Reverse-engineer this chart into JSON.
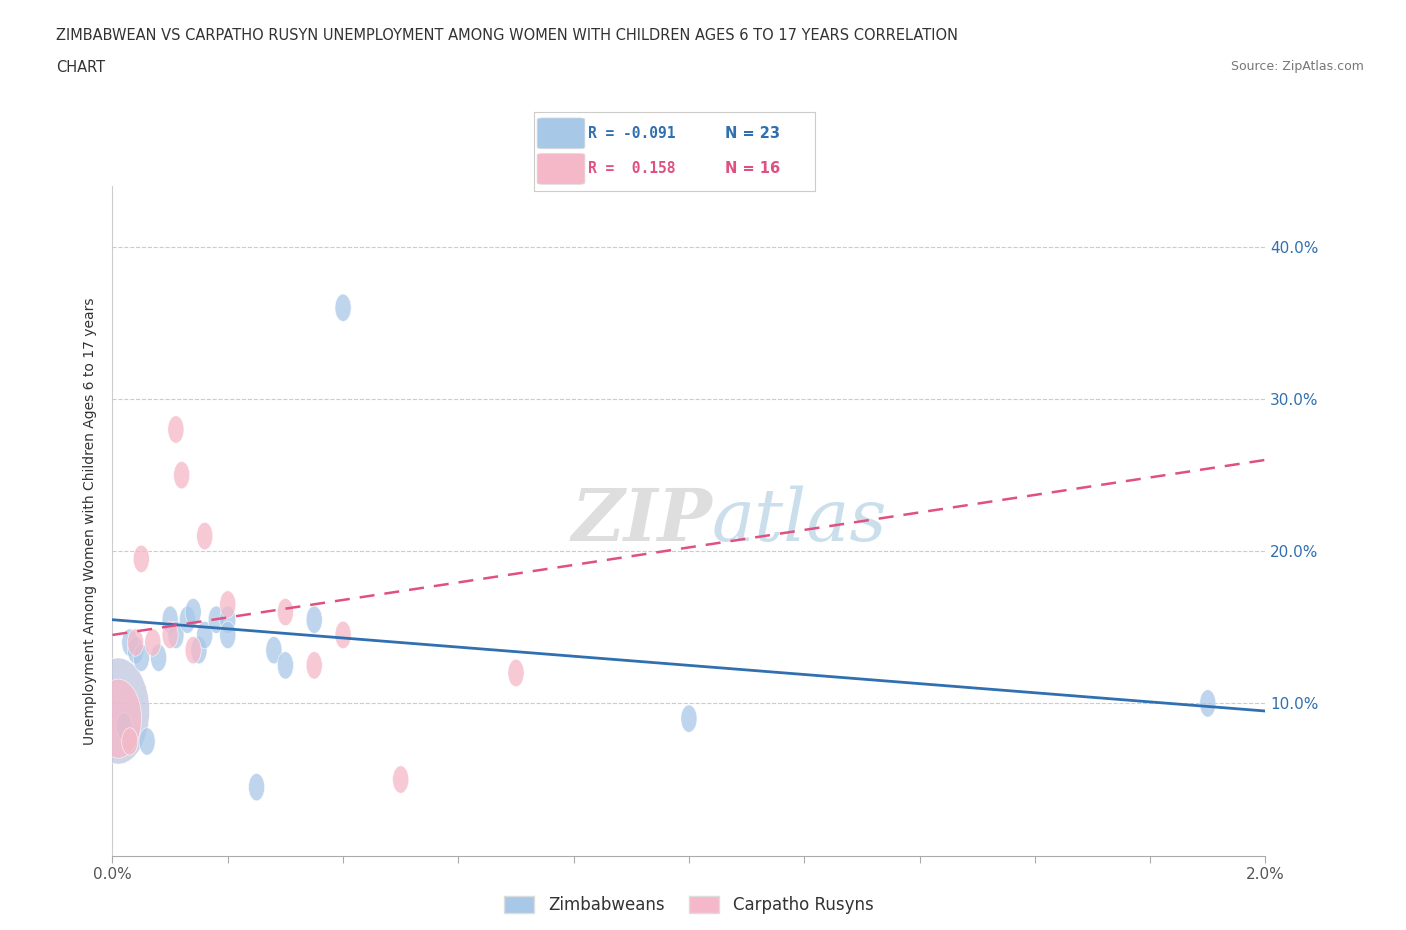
{
  "title_line1": "ZIMBABWEAN VS CARPATHO RUSYN UNEMPLOYMENT AMONG WOMEN WITH CHILDREN AGES 6 TO 17 YEARS CORRELATION",
  "title_line2": "CHART",
  "source": "Source: ZipAtlas.com",
  "ylabel": "Unemployment Among Women with Children Ages 6 to 17 years",
  "xlim": [
    0.0,
    0.02
  ],
  "ylim": [
    0.0,
    0.44
  ],
  "xticks": [
    0.0,
    0.002,
    0.004,
    0.006,
    0.008,
    0.01,
    0.012,
    0.014,
    0.016,
    0.018,
    0.02
  ],
  "yticks": [
    0.1,
    0.2,
    0.3,
    0.4
  ],
  "ytick_labels": [
    "10.0%",
    "20.0%",
    "30.0%",
    "40.0%"
  ],
  "xtick_labels": [
    "0.0%",
    "",
    "",
    "",
    "",
    "",
    "",
    "",
    "",
    "",
    "2.0%"
  ],
  "zimbabwean_color": "#a8c8e8",
  "carpatho_color": "#f5b8c8",
  "big_zim_color": "#c0c8e0",
  "trend_zimbabwean_color": "#3070b0",
  "trend_carpatho_color": "#e05080",
  "legend_R_zim": "-0.091",
  "legend_N_zim": "23",
  "legend_R_car": "0.158",
  "legend_N_car": "16",
  "background_color": "#ffffff",
  "zimbabwean_x": [
    0.0001,
    0.0002,
    0.0003,
    0.0004,
    0.0005,
    0.0006,
    0.0008,
    0.001,
    0.0011,
    0.0013,
    0.0014,
    0.0015,
    0.0016,
    0.0018,
    0.002,
    0.002,
    0.0025,
    0.0028,
    0.003,
    0.0035,
    0.004,
    0.01,
    0.019
  ],
  "zimbabwean_y": [
    0.095,
    0.085,
    0.14,
    0.135,
    0.13,
    0.075,
    0.13,
    0.155,
    0.145,
    0.155,
    0.16,
    0.135,
    0.145,
    0.155,
    0.155,
    0.145,
    0.045,
    0.135,
    0.125,
    0.155,
    0.36,
    0.09,
    0.1
  ],
  "zimbabwean_size": [
    900,
    60,
    60,
    60,
    60,
    60,
    60,
    60,
    60,
    60,
    60,
    60,
    60,
    60,
    60,
    60,
    60,
    60,
    60,
    60,
    60,
    60,
    60
  ],
  "carpatho_x": [
    0.0001,
    0.0003,
    0.0004,
    0.0005,
    0.0007,
    0.001,
    0.0011,
    0.0012,
    0.0014,
    0.0016,
    0.002,
    0.003,
    0.0035,
    0.004,
    0.005,
    0.007
  ],
  "carpatho_y": [
    0.09,
    0.075,
    0.14,
    0.195,
    0.14,
    0.145,
    0.28,
    0.25,
    0.135,
    0.21,
    0.165,
    0.16,
    0.125,
    0.145,
    0.05,
    0.12
  ],
  "carpatho_size": [
    500,
    60,
    60,
    60,
    60,
    60,
    60,
    60,
    60,
    60,
    60,
    60,
    60,
    60,
    60,
    60
  ],
  "trend_zim_x0": 0.0,
  "trend_zim_y0": 0.155,
  "trend_zim_x1": 0.02,
  "trend_zim_y1": 0.095,
  "trend_car_x0": 0.0,
  "trend_car_y0": 0.145,
  "trend_car_x1": 0.02,
  "trend_car_y1": 0.26
}
